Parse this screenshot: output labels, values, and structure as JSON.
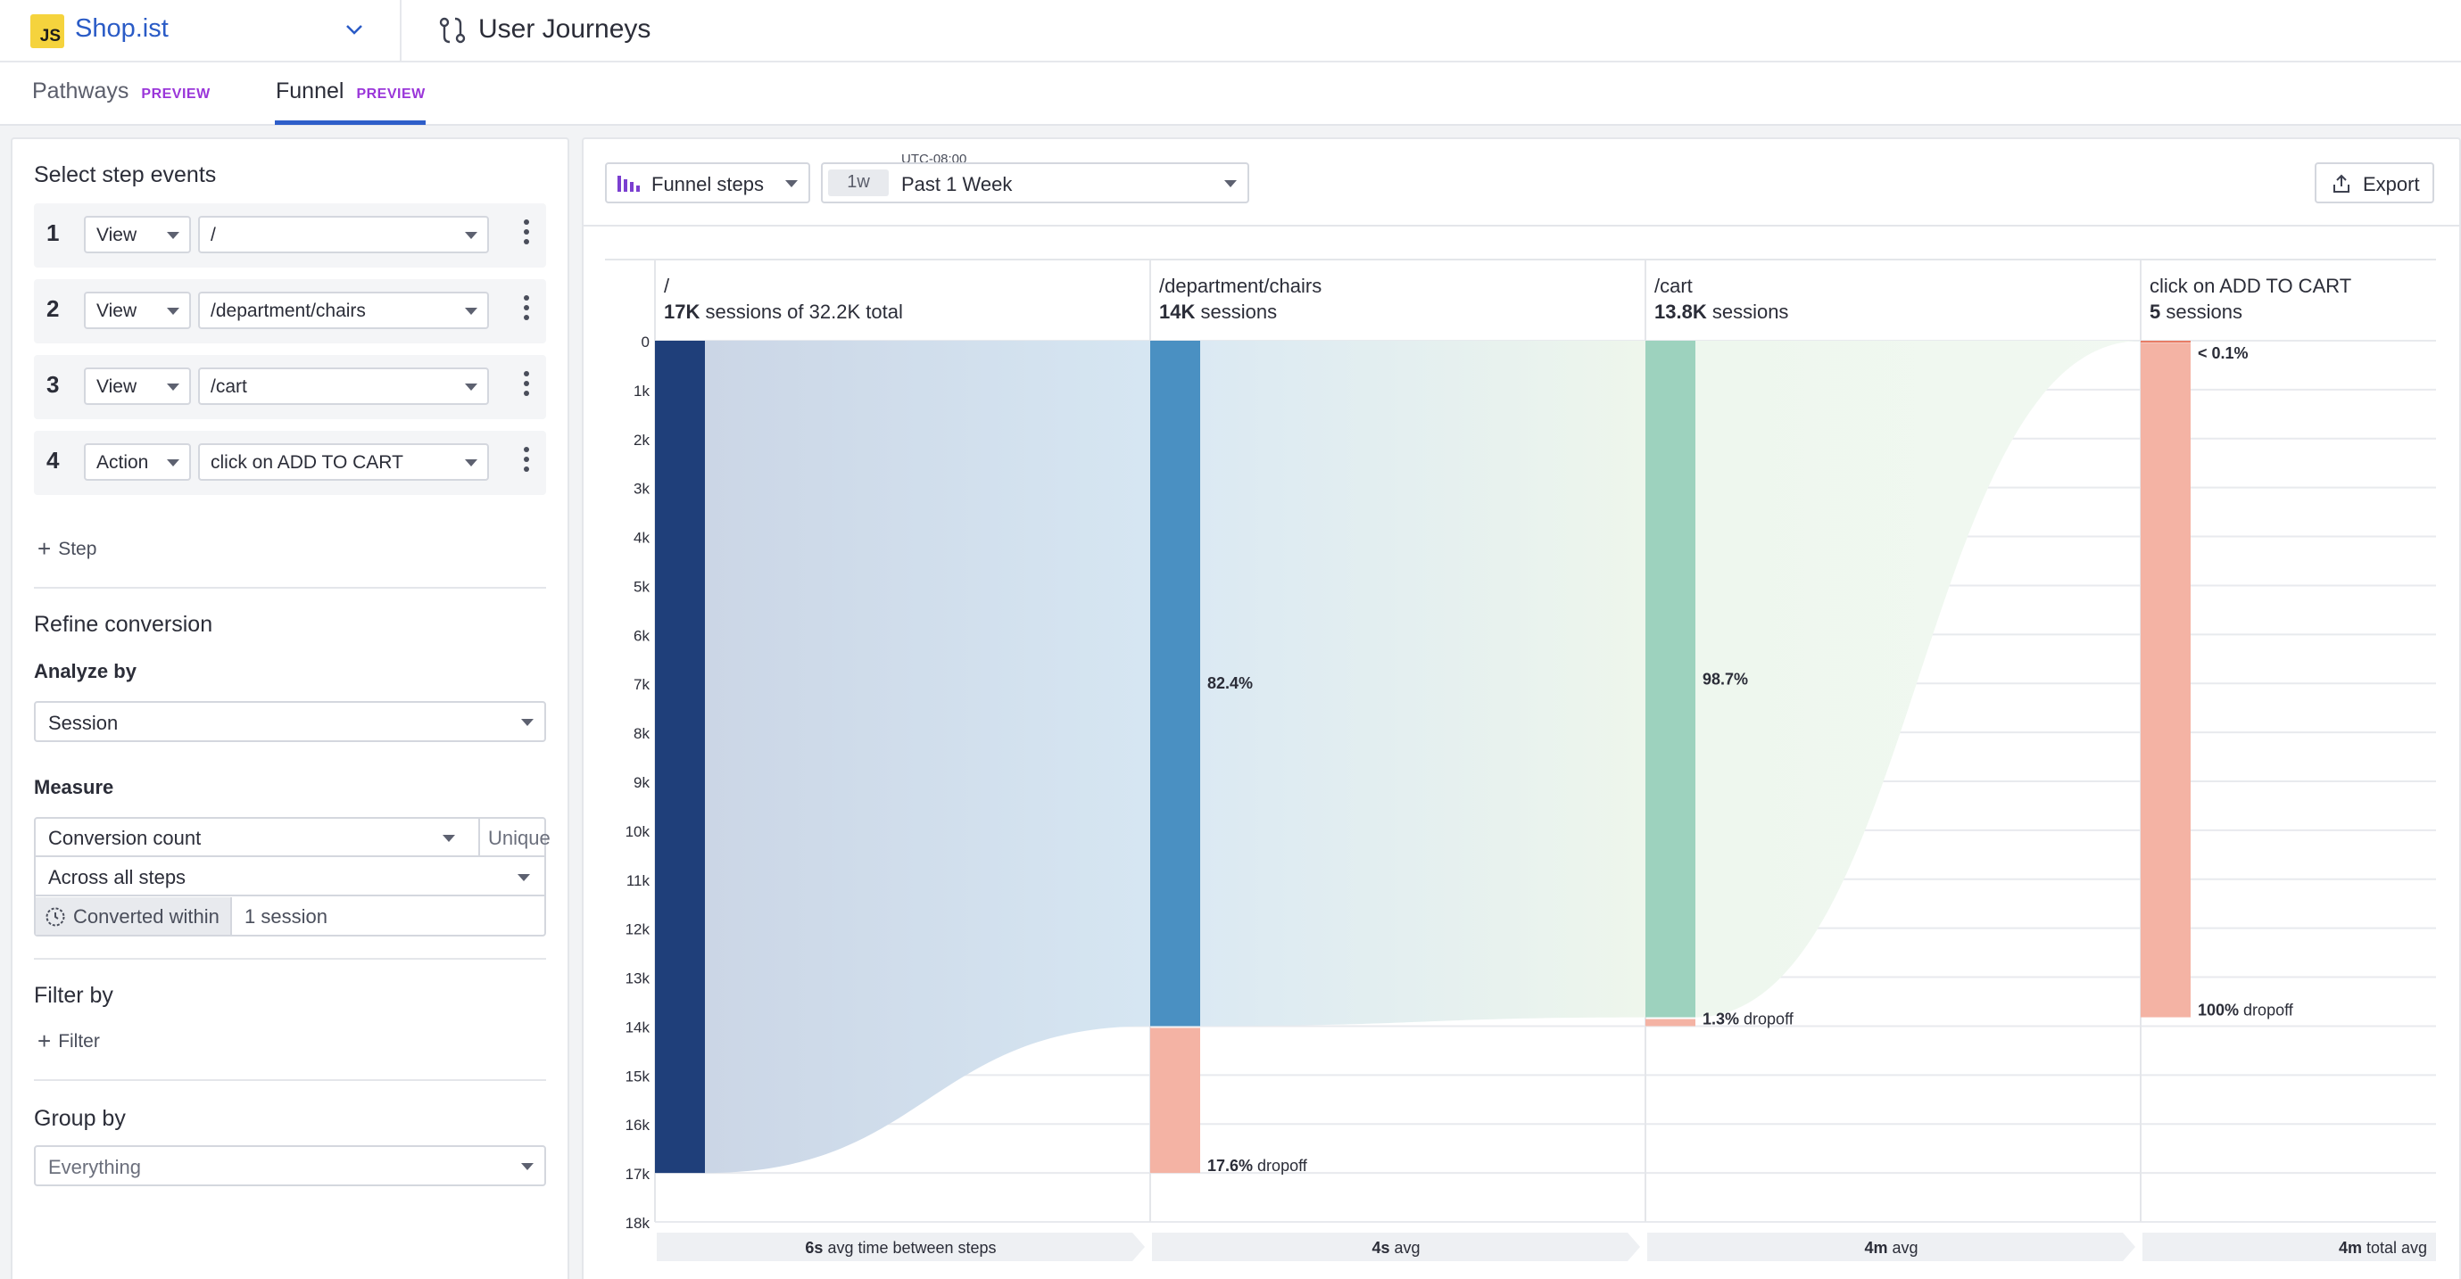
{
  "app": {
    "logo_text": "JS",
    "name": "Shop.ist",
    "page_title": "User Journeys"
  },
  "tabs": [
    {
      "label": "Pathways",
      "badge": "PREVIEW"
    },
    {
      "label": "Funnel",
      "badge": "PREVIEW"
    }
  ],
  "steps_panel": {
    "title": "Select step events",
    "steps": [
      {
        "num": "1",
        "type": "View",
        "event": "/"
      },
      {
        "num": "2",
        "type": "View",
        "event": "/department/chairs"
      },
      {
        "num": "3",
        "type": "View",
        "event": "/cart"
      },
      {
        "num": "4",
        "type": "Action",
        "event": "click on ADD TO CART"
      }
    ],
    "add_step_label": "Step"
  },
  "refine": {
    "title": "Refine conversion",
    "analyze_by_label": "Analyze by",
    "analyze_by_value": "Session",
    "measure_label": "Measure",
    "measure_value": "Conversion count",
    "unique_label": "Unique",
    "across_value": "Across all steps",
    "converted_label": "Converted within",
    "converted_value": "1 session"
  },
  "filter": {
    "title": "Filter by",
    "add_label": "Filter"
  },
  "group": {
    "title": "Group by",
    "placeholder": "Everything"
  },
  "toolbar": {
    "funnel_steps_label": "Funnel steps",
    "range_chip": "1w",
    "timezone": "UTC-08:00",
    "range_label": "Past 1 Week",
    "export_label": "Export"
  },
  "colors": {
    "accent": "#2e5ec9",
    "badge": "#9a36d9",
    "step1": "#1f3f7a",
    "step2": "#4a90c2",
    "step3": "#9dd2be",
    "dropoff": "#f4b3a4"
  },
  "chart_data": {
    "type": "bar",
    "y_ticks": [
      "0",
      "1k",
      "2k",
      "3k",
      "4k",
      "5k",
      "6k",
      "7k",
      "8k",
      "9k",
      "10k",
      "11k",
      "12k",
      "13k",
      "14k",
      "15k",
      "16k",
      "17k",
      "18k"
    ],
    "ylim": [
      0,
      18000
    ],
    "steps": [
      {
        "name": "/",
        "count_bold": "17K",
        "count_text": " sessions of 32.2K total",
        "value": 17000,
        "conversion": "",
        "dropoff_bold": "",
        "dropoff_text": "",
        "dropoff_value": 0,
        "color": "#1f3f7a"
      },
      {
        "name": "/department/chairs",
        "count_bold": "14K",
        "count_text": " sessions",
        "value": 14000,
        "conversion": "82.4%",
        "dropoff_bold": "17.6%",
        "dropoff_text": " dropoff",
        "dropoff_value": 3000,
        "color": "#4a90c2"
      },
      {
        "name": "/cart",
        "count_bold": "13.8K",
        "count_text": " sessions",
        "value": 13820,
        "conversion": "98.7%",
        "dropoff_bold": "1.3%",
        "dropoff_text": " dropoff",
        "dropoff_value": 180,
        "color": "#9dd2be"
      },
      {
        "name": "click on ADD TO CART",
        "count_bold": "5",
        "count_text": " sessions",
        "value": 5,
        "conversion": "< 0.1%",
        "dropoff_bold": "100%",
        "dropoff_text": " dropoff",
        "dropoff_value": 13815,
        "color": "#f4b3a4"
      }
    ],
    "transitions": [
      {
        "bold": "6s",
        "text": " avg time between steps"
      },
      {
        "bold": "4s",
        "text": " avg"
      },
      {
        "bold": "4m",
        "text": " avg"
      },
      {
        "bold": "4m",
        "text": " total avg"
      }
    ]
  }
}
